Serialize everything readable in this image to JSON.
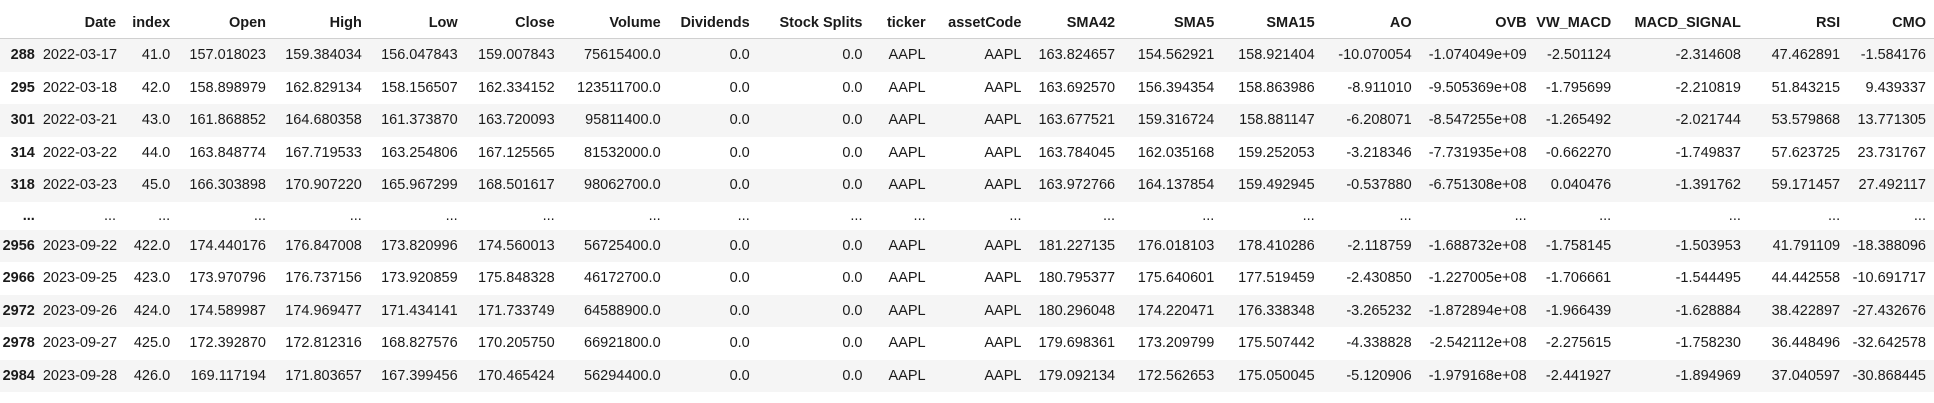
{
  "table": {
    "index_header": "",
    "columns": [
      "Date",
      "index",
      "Open",
      "High",
      "Low",
      "Close",
      "Volume",
      "Dividends",
      "Stock Splits",
      "ticker",
      "assetCode",
      "SMA42",
      "SMA5",
      "SMA15",
      "AO",
      "OVB",
      "VW_MACD",
      "MACD_SIGNAL",
      "RSI",
      "CMO"
    ],
    "rows": [
      {
        "idx": "288",
        "cells": [
          "2022-03-17",
          "41.0",
          "157.018023",
          "159.384034",
          "156.047843",
          "159.007843",
          "75615400.0",
          "0.0",
          "0.0",
          "AAPL",
          "AAPL",
          "163.824657",
          "154.562921",
          "158.921404",
          "-10.070054",
          "-1.074049e+09",
          "-2.501124",
          "-2.314608",
          "47.462891",
          "-1.584176"
        ]
      },
      {
        "idx": "295",
        "cells": [
          "2022-03-18",
          "42.0",
          "158.898979",
          "162.829134",
          "158.156507",
          "162.334152",
          "123511700.0",
          "0.0",
          "0.0",
          "AAPL",
          "AAPL",
          "163.692570",
          "156.394354",
          "158.863986",
          "-8.911010",
          "-9.505369e+08",
          "-1.795699",
          "-2.210819",
          "51.843215",
          "9.439337"
        ]
      },
      {
        "idx": "301",
        "cells": [
          "2022-03-21",
          "43.0",
          "161.868852",
          "164.680358",
          "161.373870",
          "163.720093",
          "95811400.0",
          "0.0",
          "0.0",
          "AAPL",
          "AAPL",
          "163.677521",
          "159.316724",
          "158.881147",
          "-6.208071",
          "-8.547255e+08",
          "-1.265492",
          "-2.021744",
          "53.579868",
          "13.771305"
        ]
      },
      {
        "idx": "314",
        "cells": [
          "2022-03-22",
          "44.0",
          "163.848774",
          "167.719533",
          "163.254806",
          "167.125565",
          "81532000.0",
          "0.0",
          "0.0",
          "AAPL",
          "AAPL",
          "163.784045",
          "162.035168",
          "159.252053",
          "-3.218346",
          "-7.731935e+08",
          "-0.662270",
          "-1.749837",
          "57.623725",
          "23.731767"
        ]
      },
      {
        "idx": "318",
        "cells": [
          "2022-03-23",
          "45.0",
          "166.303898",
          "170.907220",
          "165.967299",
          "168.501617",
          "98062700.0",
          "0.0",
          "0.0",
          "AAPL",
          "AAPL",
          "163.972766",
          "164.137854",
          "159.492945",
          "-0.537880",
          "-6.751308e+08",
          "0.040476",
          "-1.391762",
          "59.171457",
          "27.492117"
        ]
      },
      {
        "idx": "...",
        "ellipsis": true,
        "cells": [
          "...",
          "...",
          "...",
          "...",
          "...",
          "...",
          "...",
          "...",
          "...",
          "...",
          "...",
          "...",
          "...",
          "...",
          "...",
          "...",
          "...",
          "...",
          "...",
          "..."
        ]
      },
      {
        "idx": "2956",
        "cells": [
          "2023-09-22",
          "422.0",
          "174.440176",
          "176.847008",
          "173.820996",
          "174.560013",
          "56725400.0",
          "0.0",
          "0.0",
          "AAPL",
          "AAPL",
          "181.227135",
          "176.018103",
          "178.410286",
          "-2.118759",
          "-1.688732e+08",
          "-1.758145",
          "-1.503953",
          "41.791109",
          "-18.388096"
        ]
      },
      {
        "idx": "2966",
        "cells": [
          "2023-09-25",
          "423.0",
          "173.970796",
          "176.737156",
          "173.920859",
          "175.848328",
          "46172700.0",
          "0.0",
          "0.0",
          "AAPL",
          "AAPL",
          "180.795377",
          "175.640601",
          "177.519459",
          "-2.430850",
          "-1.227005e+08",
          "-1.706661",
          "-1.544495",
          "44.442558",
          "-10.691717"
        ]
      },
      {
        "idx": "2972",
        "cells": [
          "2023-09-26",
          "424.0",
          "174.589987",
          "174.969477",
          "171.434141",
          "171.733749",
          "64588900.0",
          "0.0",
          "0.0",
          "AAPL",
          "AAPL",
          "180.296048",
          "174.220471",
          "176.338348",
          "-3.265232",
          "-1.872894e+08",
          "-1.966439",
          "-1.628884",
          "38.422897",
          "-27.432676"
        ]
      },
      {
        "idx": "2978",
        "cells": [
          "2023-09-27",
          "425.0",
          "172.392870",
          "172.812316",
          "168.827576",
          "170.205750",
          "66921800.0",
          "0.0",
          "0.0",
          "AAPL",
          "AAPL",
          "179.698361",
          "173.209799",
          "175.507442",
          "-4.338828",
          "-2.542112e+08",
          "-2.275615",
          "-1.758230",
          "36.448496",
          "-32.642578"
        ]
      },
      {
        "idx": "2984",
        "cells": [
          "2023-09-28",
          "426.0",
          "169.117194",
          "171.803657",
          "167.399456",
          "170.465424",
          "56294400.0",
          "0.0",
          "0.0",
          "AAPL",
          "AAPL",
          "179.092134",
          "172.562653",
          "175.050045",
          "-5.120906",
          "-1.979168e+08",
          "-2.441927",
          "-1.894969",
          "37.040597",
          "-30.868445"
        ]
      }
    ]
  }
}
